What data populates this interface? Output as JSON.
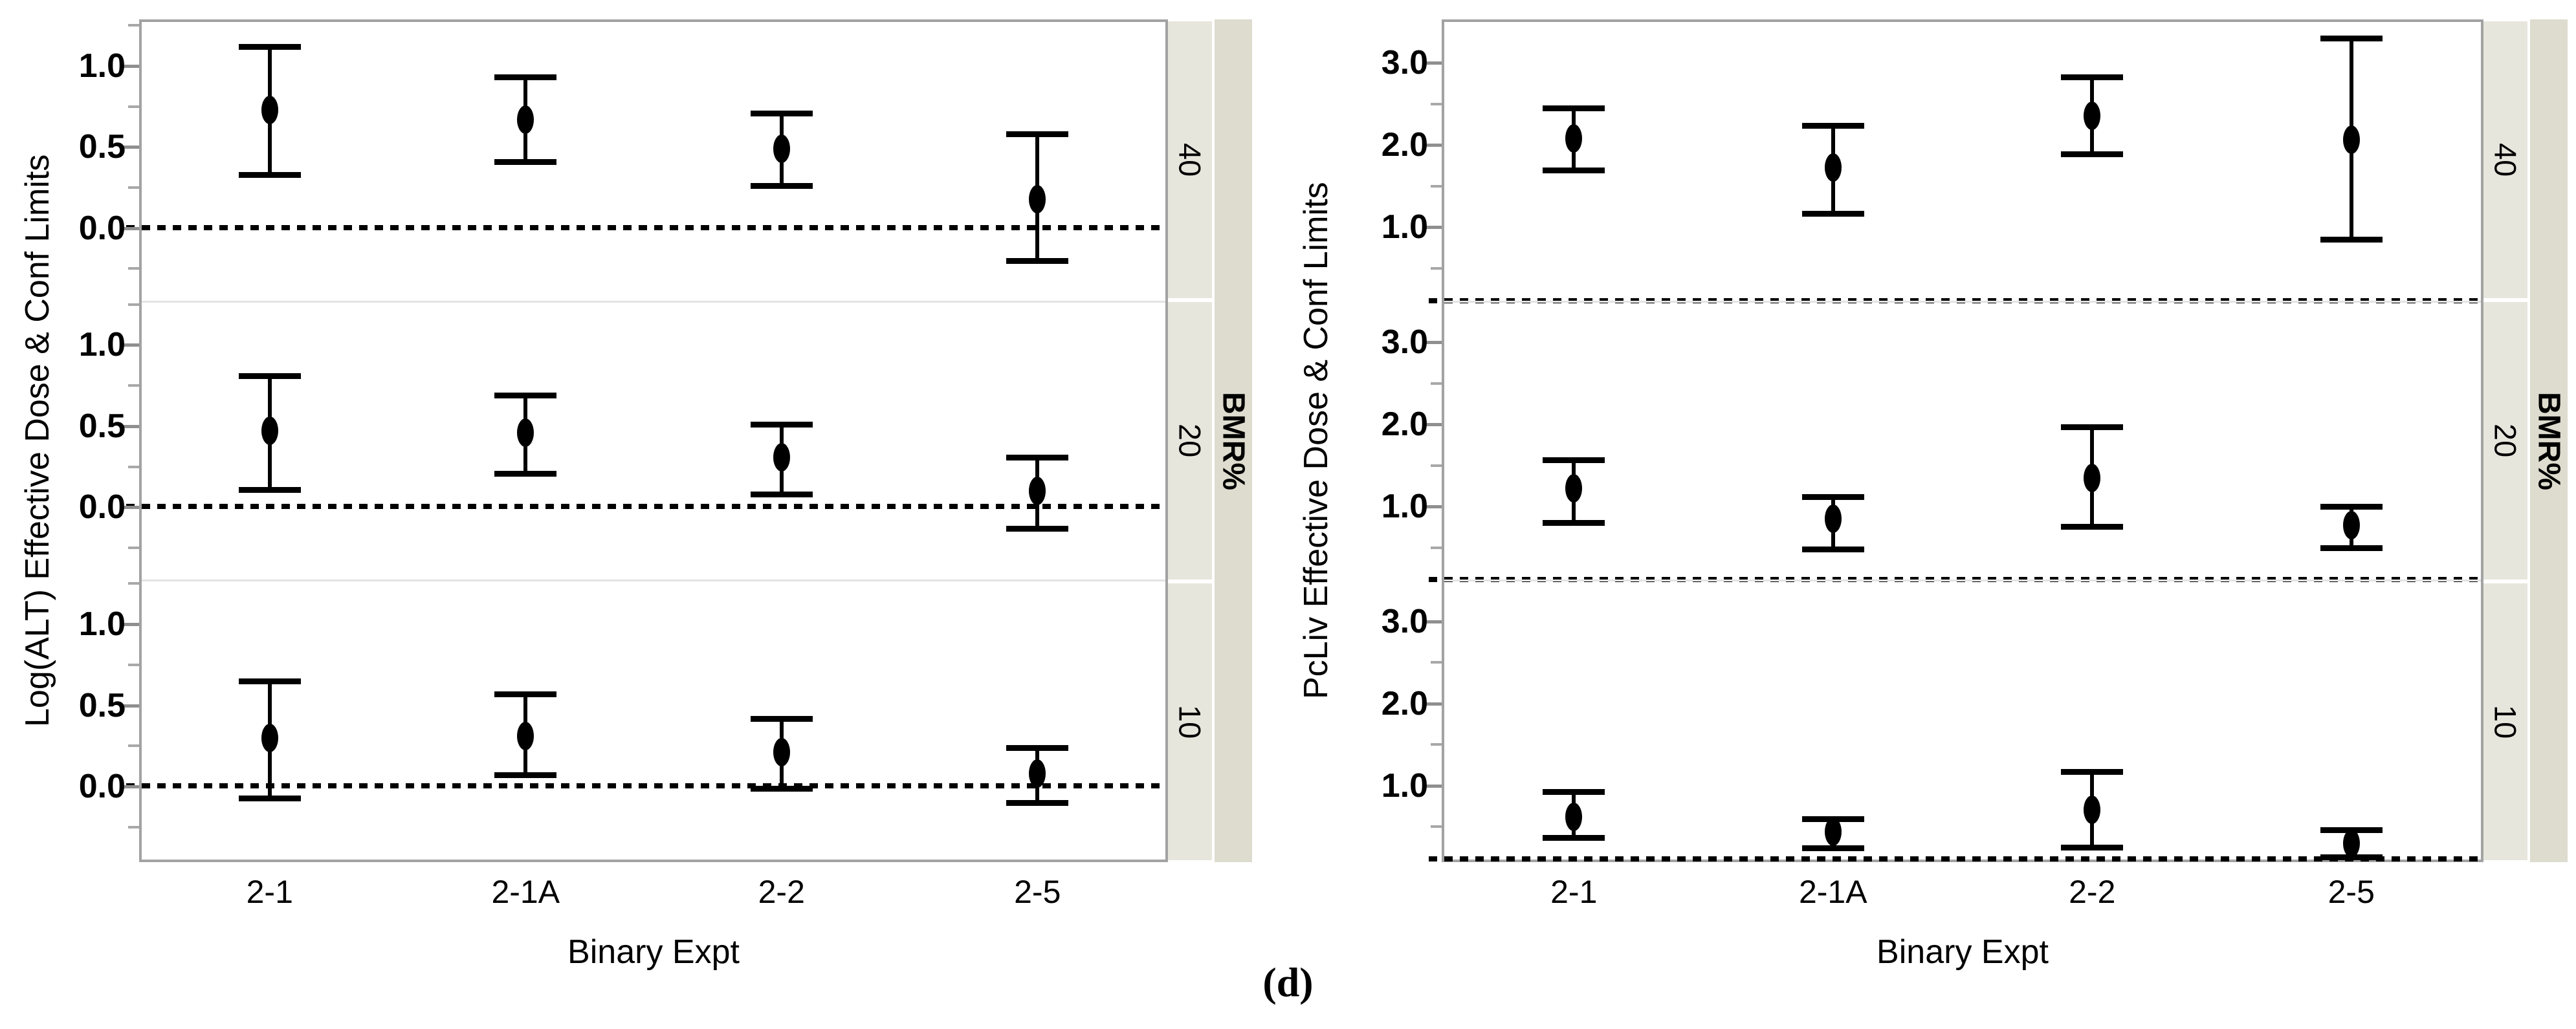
{
  "figure": {
    "caption": "(d)",
    "background": "#ffffff"
  },
  "strip": {
    "title": "BMR%",
    "inner_fill": "#e7e6dd",
    "outer_fill": "#dedcce",
    "text_color": "#000000"
  },
  "chart_data": [
    {
      "type": "scatter",
      "subtype": "error-bar-lattice",
      "id": "log-alt-panel",
      "ylabel": "Log(ALT) Effective Dose & Conf Limits",
      "xlabel": "Binary Expt",
      "categories": [
        "2-1",
        "2-1A",
        "2-2",
        "2-5"
      ],
      "ylim": [
        -0.45,
        1.27
      ],
      "yticks_major": [
        0.0,
        0.5,
        1.0
      ],
      "ytick_labels": [
        "0.0",
        "0.5",
        "1.0"
      ],
      "yticks_minor": [
        -0.25,
        0.25,
        0.75,
        1.25
      ],
      "refline": 0.0,
      "grid": false,
      "legend": null,
      "marker_color": "#000000",
      "groups": [
        {
          "bmr": "40",
          "points": [
            {
              "x": "2-1",
              "est": 0.73,
              "lo": 0.33,
              "hi": 1.12
            },
            {
              "x": "2-1A",
              "est": 0.67,
              "lo": 0.41,
              "hi": 0.93
            },
            {
              "x": "2-2",
              "est": 0.49,
              "lo": 0.26,
              "hi": 0.71
            },
            {
              "x": "2-5",
              "est": 0.18,
              "lo": -0.2,
              "hi": 0.58
            }
          ]
        },
        {
          "bmr": "20",
          "points": [
            {
              "x": "2-1",
              "est": 0.47,
              "lo": 0.11,
              "hi": 0.81
            },
            {
              "x": "2-1A",
              "est": 0.46,
              "lo": 0.21,
              "hi": 0.69
            },
            {
              "x": "2-2",
              "est": 0.31,
              "lo": 0.08,
              "hi": 0.51
            },
            {
              "x": "2-5",
              "est": 0.1,
              "lo": -0.13,
              "hi": 0.31
            }
          ]
        },
        {
          "bmr": "10",
          "points": [
            {
              "x": "2-1",
              "est": 0.3,
              "lo": -0.07,
              "hi": 0.65
            },
            {
              "x": "2-1A",
              "est": 0.31,
              "lo": 0.07,
              "hi": 0.57
            },
            {
              "x": "2-2",
              "est": 0.21,
              "lo": -0.01,
              "hi": 0.42
            },
            {
              "x": "2-5",
              "est": 0.08,
              "lo": -0.1,
              "hi": 0.24
            }
          ]
        }
      ]
    },
    {
      "type": "scatter",
      "subtype": "error-bar-lattice",
      "id": "pcliv-panel",
      "ylabel": "PcLiv Effective Dose & Conf Limits",
      "xlabel": "Binary Expt",
      "categories": [
        "2-1",
        "2-1A",
        "2-2",
        "2-5"
      ],
      "ylim": [
        0.1,
        3.5
      ],
      "yticks_major": [
        1.0,
        2.0,
        3.0
      ],
      "ytick_labels": [
        "1.0",
        "2.0",
        "3.0"
      ],
      "yticks_minor": [
        0.5,
        1.5,
        2.5
      ],
      "refline": 0.1,
      "grid": false,
      "legend": null,
      "marker_color": "#000000",
      "groups": [
        {
          "bmr": "40",
          "points": [
            {
              "x": "2-1",
              "est": 2.08,
              "lo": 1.7,
              "hi": 2.45
            },
            {
              "x": "2-1A",
              "est": 1.73,
              "lo": 1.17,
              "hi": 2.24
            },
            {
              "x": "2-2",
              "est": 2.36,
              "lo": 1.89,
              "hi": 2.83
            },
            {
              "x": "2-5",
              "est": 2.07,
              "lo": 0.85,
              "hi": 3.3
            }
          ]
        },
        {
          "bmr": "20",
          "points": [
            {
              "x": "2-1",
              "est": 1.22,
              "lo": 0.8,
              "hi": 1.57
            },
            {
              "x": "2-1A",
              "est": 0.85,
              "lo": 0.48,
              "hi": 1.12
            },
            {
              "x": "2-2",
              "est": 1.35,
              "lo": 0.76,
              "hi": 1.97
            },
            {
              "x": "2-5",
              "est": 0.77,
              "lo": 0.5,
              "hi": 1.0
            }
          ]
        },
        {
          "bmr": "10",
          "points": [
            {
              "x": "2-1",
              "est": 0.62,
              "lo": 0.37,
              "hi": 0.93
            },
            {
              "x": "2-1A",
              "est": 0.44,
              "lo": 0.24,
              "hi": 0.6
            },
            {
              "x": "2-2",
              "est": 0.71,
              "lo": 0.25,
              "hi": 1.17
            },
            {
              "x": "2-5",
              "est": 0.3,
              "lo": 0.13,
              "hi": 0.46
            }
          ]
        }
      ]
    }
  ]
}
